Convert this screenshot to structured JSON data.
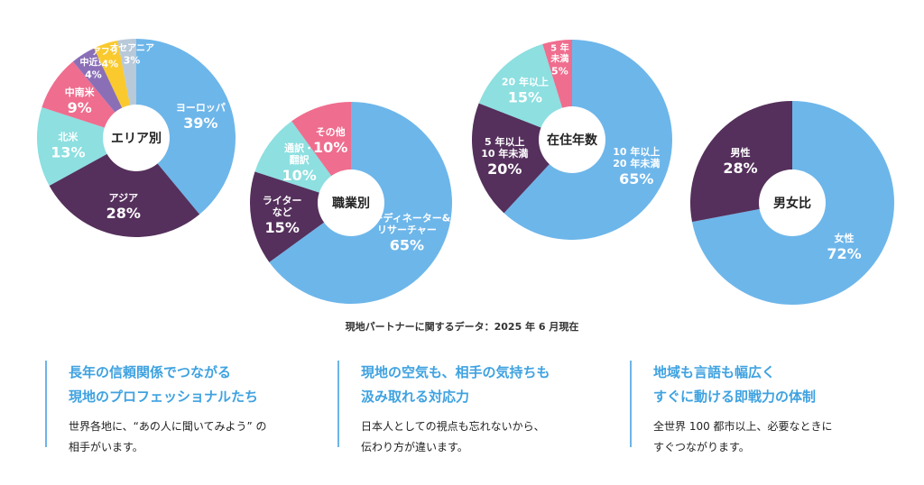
{
  "colors": {
    "blue": "#6db6ea",
    "purple": "#55305c",
    "teal": "#8ddfe0",
    "pink": "#ef6d8e",
    "violet": "#8a6fb7",
    "yellow": "#f9c92e",
    "gray": "#b8c9d9",
    "accent": "#3fa2e0"
  },
  "chart_data": [
    {
      "type": "pie",
      "title": "エリア別",
      "slices": [
        {
          "label": "ヨーロッパ",
          "value": 39,
          "value_label": "39%",
          "color": "#6db6ea"
        },
        {
          "label": "アジア",
          "value": 28,
          "value_label": "28%",
          "color": "#55305c"
        },
        {
          "label": "北米",
          "value": 13,
          "value_label": "13%",
          "color": "#8ddfe0"
        },
        {
          "label": "中南米",
          "value": 9,
          "value_label": "9%",
          "color": "#ef6d8e"
        },
        {
          "label": "中近東",
          "value": 4,
          "value_label": "4%",
          "color": "#8a6fb7"
        },
        {
          "label": "アフリカ",
          "value": 4,
          "value_label": "4%",
          "color": "#f9c92e"
        },
        {
          "label": "オセアニア",
          "value": 3,
          "value_label": "3%",
          "color": "#b8c9d9"
        }
      ]
    },
    {
      "type": "pie",
      "title": "職業別",
      "slices": [
        {
          "label": "コーディネーター&\nリサーチャー",
          "value": 65,
          "value_label": "65%",
          "color": "#6db6ea"
        },
        {
          "label": "ライター\nなど",
          "value": 15,
          "value_label": "15%",
          "color": "#55305c"
        },
        {
          "label": "通訳・\n翻訳",
          "value": 10,
          "value_label": "10%",
          "color": "#8ddfe0"
        },
        {
          "label": "その他",
          "value": 10,
          "value_label": "10%",
          "color": "#ef6d8e"
        }
      ]
    },
    {
      "type": "pie",
      "title": "在住年数",
      "slices": [
        {
          "label": "10 年以上\n20 年未満",
          "value": 65,
          "value_label": "65%",
          "color": "#6db6ea"
        },
        {
          "label": "5 年以上\n10 年未満",
          "value": 20,
          "value_label": "20%",
          "color": "#55305c"
        },
        {
          "label": "20 年以上",
          "value": 15,
          "value_label": "15%",
          "color": "#8ddfe0"
        },
        {
          "label": "5 年\n未満",
          "value": 5,
          "value_label": "5%",
          "color": "#ef6d8e"
        }
      ]
    },
    {
      "type": "pie",
      "title": "男女比",
      "slices": [
        {
          "label": "女性",
          "value": 72,
          "value_label": "72%",
          "color": "#6db6ea"
        },
        {
          "label": "男性",
          "value": 28,
          "value_label": "28%",
          "color": "#55305c"
        }
      ]
    }
  ],
  "source_note": "現地パートナーに関するデータ：2025 年 6 月現在",
  "features": [
    {
      "title_lines": [
        "長年の信頼関係でつながる",
        "現地のプロフェッショナルたち"
      ],
      "body_lines": [
        "世界各地に、“あの人に聞いてみよう” の",
        "相手がいます。"
      ]
    },
    {
      "title_lines": [
        "現地の空気も、相手の気持ちも",
        "汲み取れる対応力"
      ],
      "body_lines": [
        "日本人としての視点も忘れないから、",
        "伝わり方が違います。"
      ]
    },
    {
      "title_lines": [
        "地域も言語も幅広く",
        "すぐに動ける即戦力の体制"
      ],
      "body_lines": [
        "全世界 100 都市以上、必要なときに",
        "すぐつながります。"
      ]
    }
  ]
}
